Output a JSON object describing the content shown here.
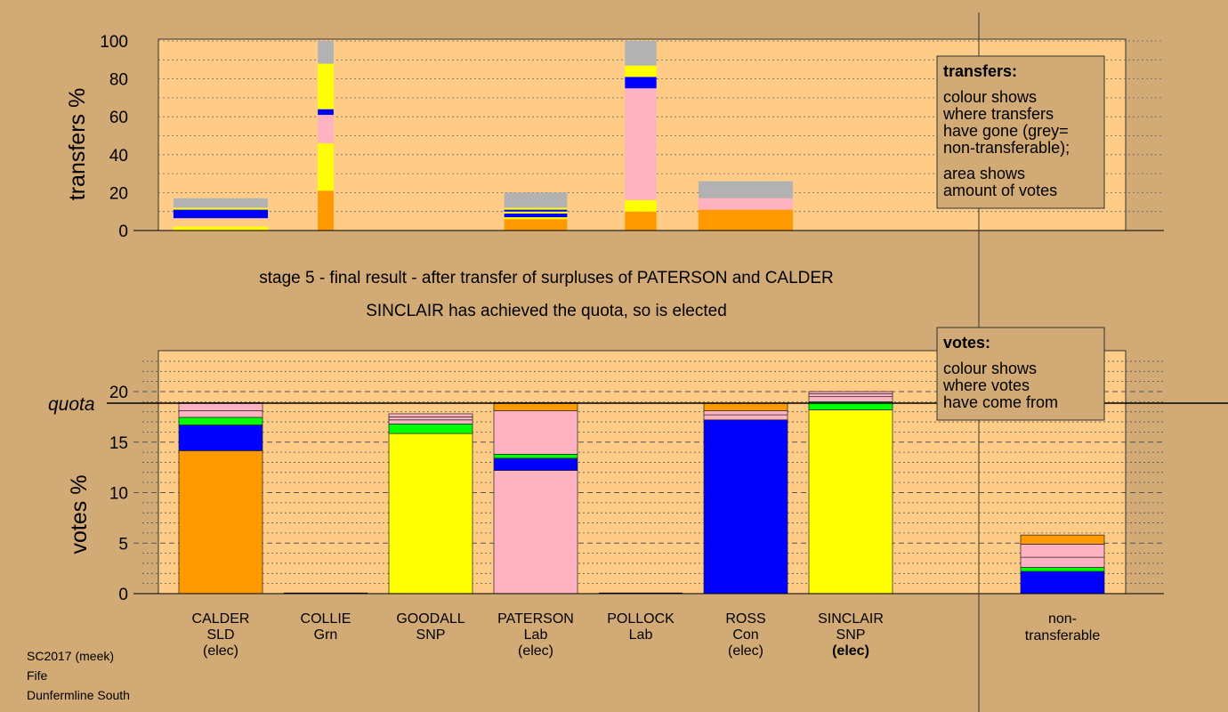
{
  "chart_data": {
    "type": "bar",
    "stage_title": "stage 5 - final result - after transfer of surpluses of PATERSON and CALDER",
    "stage_subtitle": "SINCLAIR has achieved the quota, so is elected",
    "colors": {
      "SLD": "#FF9900",
      "Grn": "#00FF00",
      "SNP": "#FFFF00",
      "Lab": "#FFB2C2",
      "Con": "#0000FF",
      "non-transferable": "#B2B2B2",
      "plot_bg": "#FFCC88",
      "page_bg": "#D2AA76"
    },
    "candidates": [
      {
        "name": "CALDER",
        "party": "SLD",
        "status": "(elec)"
      },
      {
        "name": "COLLIE",
        "party": "Grn",
        "status": ""
      },
      {
        "name": "GOODALL",
        "party": "SNP",
        "status": ""
      },
      {
        "name": "PATERSON",
        "party": "Lab",
        "status": "(elec)"
      },
      {
        "name": "POLLOCK",
        "party": "Lab",
        "status": ""
      },
      {
        "name": "ROSS",
        "party": "Con",
        "status": "(elec)"
      },
      {
        "name": "SINCLAIR",
        "party": "SNP",
        "status": "(elec)"
      }
    ],
    "nontransferable_label": [
      "non-",
      "transferable"
    ],
    "transfers": {
      "ylabel": "transfers %",
      "ylim": [
        0,
        100
      ],
      "yticks": [
        0,
        20,
        40,
        60,
        80,
        100
      ],
      "columns": [
        {
          "center": 0,
          "width": 0.9,
          "segments": [
            {
              "party": "SNP",
              "from": 0,
              "to": 2
            },
            {
              "party": "Con",
              "from": 6.5,
              "to": 11
            },
            {
              "party": "SNP",
              "from": 11,
              "to": 12
            },
            {
              "party": "non-transferable",
              "from": 12,
              "to": 17
            }
          ]
        },
        {
          "center": 1,
          "width": 0.15,
          "segments": [
            {
              "party": "SLD",
              "from": 0,
              "to": 21
            },
            {
              "party": "SNP",
              "from": 21,
              "to": 46
            },
            {
              "party": "Lab",
              "from": 46,
              "to": 61
            },
            {
              "party": "Con",
              "from": 61,
              "to": 64
            },
            {
              "party": "SNP",
              "from": 64,
              "to": 88
            },
            {
              "party": "non-transferable",
              "from": 88,
              "to": 100
            }
          ]
        },
        {
          "center": 3,
          "width": 0.6,
          "segments": [
            {
              "party": "SLD",
              "from": 0,
              "to": 6
            },
            {
              "party": "SNP",
              "from": 6,
              "to": 7
            },
            {
              "party": "Con",
              "from": 7,
              "to": 9
            },
            {
              "party": "SNP",
              "from": 9,
              "to": 10
            },
            {
              "party": "Con",
              "from": 10,
              "to": 11
            },
            {
              "party": "SNP",
              "from": 11,
              "to": 12
            },
            {
              "party": "non-transferable",
              "from": 12,
              "to": 20
            }
          ]
        },
        {
          "center": 4,
          "width": 0.3,
          "segments": [
            {
              "party": "SLD",
              "from": 0,
              "to": 10
            },
            {
              "party": "SNP",
              "from": 10,
              "to": 16
            },
            {
              "party": "Lab",
              "from": 16,
              "to": 75
            },
            {
              "party": "Con",
              "from": 75,
              "to": 81
            },
            {
              "party": "SNP",
              "from": 81,
              "to": 87
            },
            {
              "party": "non-transferable",
              "from": 87,
              "to": 100
            }
          ]
        },
        {
          "center": 5,
          "width": 0.9,
          "segments": [
            {
              "party": "SLD",
              "from": 0,
              "to": 11
            },
            {
              "party": "Lab",
              "from": 11,
              "to": 17
            },
            {
              "party": "non-transferable",
              "from": 17,
              "to": 26
            }
          ]
        }
      ]
    },
    "votes": {
      "ylabel": "votes %",
      "ylim": [
        0,
        24
      ],
      "yticks": [
        0,
        5,
        10,
        15,
        20
      ],
      "quota": 18.85,
      "quota_label": "quota",
      "bars": [
        {
          "segments": [
            {
              "party": "SLD",
              "value": 14.15
            },
            {
              "party": "Con",
              "value": 2.55
            },
            {
              "party": "Grn",
              "value": 0.75
            },
            {
              "party": "Lab",
              "value": 0.65
            },
            {
              "party": "Lab",
              "value": 0.8
            }
          ]
        },
        {
          "segments": []
        },
        {
          "segments": [
            {
              "party": "SNP",
              "value": 15.85
            },
            {
              "party": "Grn",
              "value": 0.95
            },
            {
              "party": "Lab",
              "value": 0.4
            },
            {
              "party": "Lab",
              "value": 0.3
            },
            {
              "party": "Lab",
              "value": 0.3
            }
          ]
        },
        {
          "segments": [
            {
              "party": "Lab",
              "value": 12.2
            },
            {
              "party": "Con",
              "value": 1.2
            },
            {
              "party": "Grn",
              "value": 0.4
            },
            {
              "party": "Lab",
              "value": 4.3
            },
            {
              "party": "SLD",
              "value": 0.8
            }
          ]
        },
        {
          "segments": []
        },
        {
          "segments": [
            {
              "party": "Con",
              "value": 17.2
            },
            {
              "party": "Lab",
              "value": 0.5
            },
            {
              "party": "Lab",
              "value": 0.4
            },
            {
              "party": "SLD",
              "value": 0.75
            }
          ]
        },
        {
          "segments": [
            {
              "party": "SNP",
              "value": 18.2
            },
            {
              "party": "Grn",
              "value": 0.8
            },
            {
              "party": "Lab",
              "value": 0.5
            },
            {
              "party": "Lab",
              "value": 0.3
            },
            {
              "party": "Lab",
              "value": 0.2
            }
          ]
        },
        {
          "segments": [
            {
              "party": "Con",
              "value": 2.2
            },
            {
              "party": "Grn",
              "value": 0.4
            },
            {
              "party": "Lab",
              "value": 1.0
            },
            {
              "party": "Lab",
              "value": 1.3
            },
            {
              "party": "SLD",
              "value": 0.9
            }
          ]
        }
      ]
    }
  },
  "legend_transfers": {
    "title": "transfers:",
    "lines": [
      "colour shows",
      "where transfers",
      "have gone (grey=",
      "non-transferable);"
    ],
    "lines2": [
      "area shows",
      "amount of votes"
    ]
  },
  "legend_votes": {
    "title": "votes:",
    "lines": [
      "colour shows",
      "where votes",
      "have come from"
    ]
  },
  "footer": {
    "line1": "SC2017 (meek)",
    "line2": "Fife",
    "line3": "Dunfermline South"
  }
}
